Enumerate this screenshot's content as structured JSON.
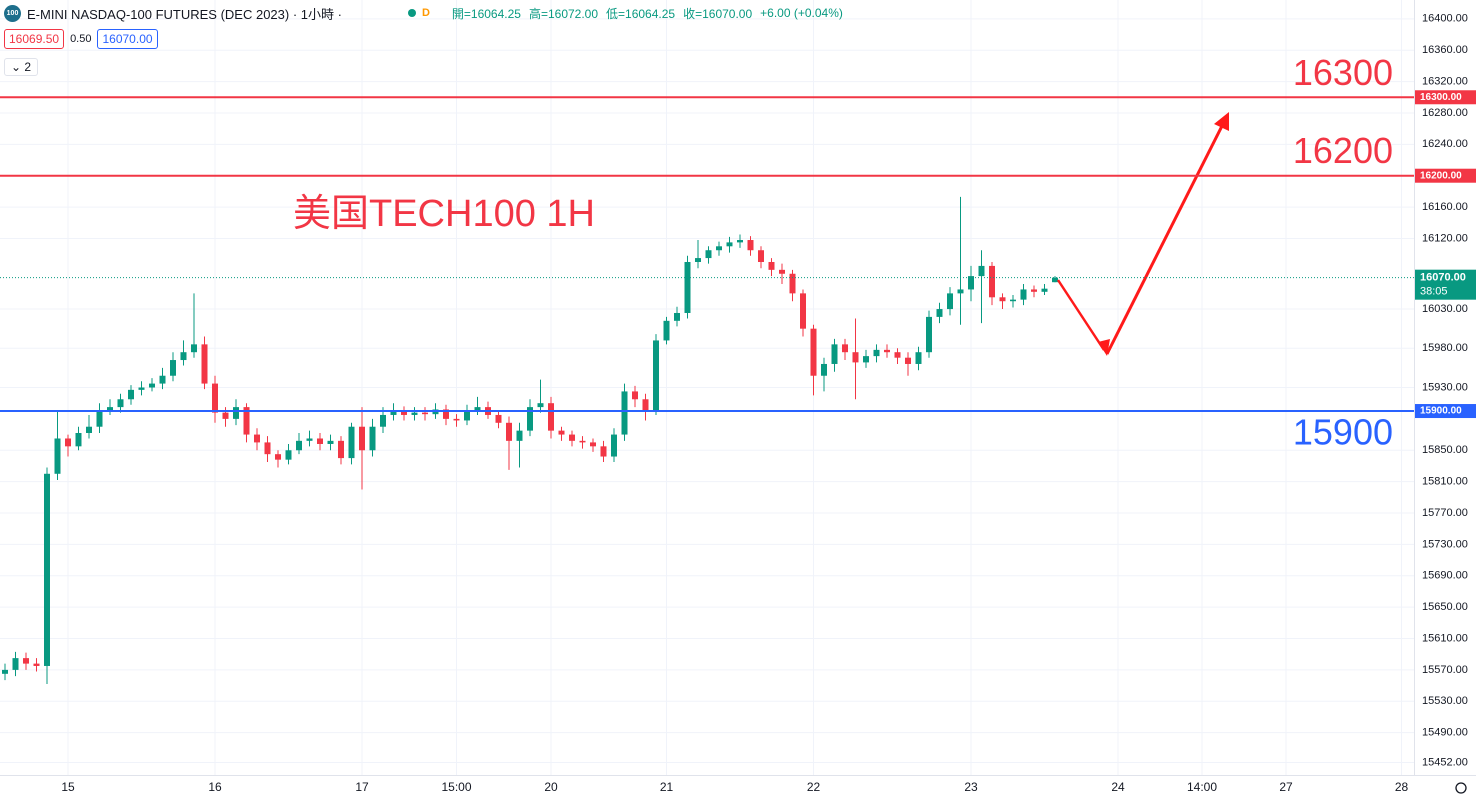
{
  "header": {
    "icon": "100",
    "title": "E-MINI NASDAQ-100 FUTURES (DEC 2023) · 1小時 ·",
    "badge": "D",
    "ohlc": [
      "開=16064.25",
      "高=16072.00",
      "低=16064.25",
      "收=16070.00",
      "+6.00 (+0.04%)"
    ],
    "bid": "16069.50",
    "spread": "0.50",
    "ask": "16070.00",
    "layout_count": "2"
  },
  "chart_data": {
    "type": "candlestick",
    "annotation": "美国TECH100 1H",
    "categories": [
      null,
      null,
      null,
      null,
      null,
      null,
      "15",
      null,
      null,
      null,
      null,
      null,
      null,
      null,
      null,
      null,
      null,
      null,
      null,
      null,
      "16",
      null,
      null,
      null,
      null,
      null,
      null,
      null,
      null,
      null,
      null,
      null,
      null,
      null,
      "17",
      null,
      null,
      null,
      null,
      null,
      null,
      null,
      null,
      "15:00",
      null,
      null,
      null,
      null,
      null,
      null,
      null,
      null,
      "20",
      null,
      null,
      null,
      null,
      null,
      null,
      null,
      null,
      null,
      null,
      "21",
      null,
      null,
      null,
      null,
      null,
      null,
      null,
      null,
      null,
      null,
      null,
      null,
      null,
      "22",
      null,
      null,
      null,
      null,
      null,
      null,
      null,
      null,
      null,
      null,
      null,
      null,
      null,
      null,
      "23",
      null,
      null,
      null,
      null,
      null,
      null,
      null,
      null,
      null,
      null,
      null,
      null,
      null,
      "24",
      null,
      null,
      null,
      null,
      null,
      null,
      null,
      "14:00",
      null,
      null,
      null,
      null,
      null,
      null,
      null,
      "27",
      null,
      null,
      null,
      null,
      null,
      null,
      null,
      null,
      null,
      null,
      "28"
    ],
    "open": [
      15565,
      15570,
      15585,
      15578,
      15575,
      15820,
      15865,
      15855,
      15872,
      15880,
      15900,
      15905,
      15915,
      15927,
      15930,
      15935,
      15945,
      15965,
      15975,
      15985,
      15935,
      15898,
      15890,
      15905,
      15870,
      15860,
      15845,
      15838,
      15850,
      15862,
      15865,
      15858,
      15862,
      15840,
      15880,
      15850,
      15880,
      15895,
      15900,
      15895,
      15898,
      15896,
      15902,
      15890,
      15888,
      15900,
      15905,
      15895,
      15885,
      15862,
      15875,
      15905,
      15910,
      15875,
      15870,
      15862,
      15860,
      15855,
      15842,
      15870,
      15925,
      15915,
      15900,
      15990,
      16015,
      16025,
      16090,
      16095,
      16105,
      16110,
      16115,
      16118,
      16105,
      16090,
      16080,
      16075,
      16050,
      16005,
      15945,
      15960,
      15985,
      15975,
      15962,
      15970,
      15978,
      15975,
      15968,
      15960,
      15975,
      16020,
      16030,
      16050,
      16055,
      16072,
      16085,
      16045,
      16040,
      16042,
      16055,
      16052,
      16064.25,
      null,
      null,
      null,
      null,
      null,
      null,
      null,
      null,
      null,
      null,
      null,
      null,
      null,
      null,
      null,
      null,
      null,
      null,
      null,
      null,
      null,
      null,
      null,
      null,
      null,
      null,
      null,
      null,
      null,
      null,
      null,
      null,
      null
    ],
    "high": [
      15578,
      15593,
      15592,
      15585,
      15828,
      15900,
      15870,
      15880,
      15895,
      15910,
      15915,
      15922,
      15933,
      15938,
      15942,
      15955,
      15975,
      15990,
      16050,
      15995,
      15945,
      15905,
      15915,
      15910,
      15878,
      15868,
      15850,
      15858,
      15872,
      15875,
      15872,
      15870,
      15868,
      15885,
      15905,
      15890,
      15905,
      15910,
      15906,
      15905,
      15905,
      15910,
      15908,
      15896,
      15908,
      15918,
      15912,
      15900,
      15893,
      15885,
      15915,
      15940,
      15918,
      15880,
      15875,
      15868,
      15865,
      15862,
      15878,
      15935,
      15932,
      15922,
      15998,
      16020,
      16033,
      16098,
      16118,
      16110,
      16116,
      16122,
      16125,
      16123,
      16110,
      16095,
      16088,
      16080,
      16055,
      16010,
      15968,
      15992,
      15992,
      16018,
      15978,
      15985,
      15985,
      15980,
      15975,
      15982,
      16028,
      16038,
      16058,
      16173,
      16085,
      16105,
      16090,
      16050,
      16048,
      16062,
      16060,
      16062,
      16072,
      null,
      null,
      null,
      null,
      null,
      null,
      null,
      null,
      null,
      null,
      null,
      null,
      null,
      null,
      null,
      null,
      null,
      null,
      null,
      null,
      null,
      null,
      null,
      null,
      null,
      null,
      null,
      null,
      null,
      null,
      null,
      null,
      null
    ],
    "low": [
      15557,
      15562,
      15570,
      15568,
      15552,
      15812,
      15842,
      15850,
      15865,
      15872,
      15895,
      15898,
      15908,
      15920,
      15925,
      15928,
      15938,
      15958,
      15968,
      15928,
      15885,
      15880,
      15882,
      15860,
      15850,
      15835,
      15828,
      15832,
      15845,
      15855,
      15850,
      15850,
      15832,
      15832,
      15800,
      15842,
      15872,
      15888,
      15888,
      15888,
      15888,
      15890,
      15882,
      15880,
      15882,
      15895,
      15890,
      15878,
      15825,
      15828,
      15868,
      15898,
      15865,
      15862,
      15855,
      15852,
      15848,
      15835,
      15835,
      15862,
      15905,
      15888,
      15895,
      15985,
      16008,
      16018,
      16082,
      16088,
      16098,
      16102,
      16108,
      16098,
      16082,
      16072,
      16062,
      16040,
      15995,
      15920,
      15925,
      15950,
      15965,
      15915,
      15955,
      15962,
      15968,
      15960,
      15945,
      15952,
      15968,
      16012,
      16022,
      16010,
      16040,
      16012,
      16035,
      16030,
      16032,
      16035,
      16045,
      16048,
      16064.25,
      null,
      null,
      null,
      null,
      null,
      null,
      null,
      null,
      null,
      null,
      null,
      null,
      null,
      null,
      null,
      null,
      null,
      null,
      null,
      null,
      null,
      null,
      null,
      null,
      null,
      null,
      null,
      null,
      null,
      null,
      null,
      null,
      null
    ],
    "close": [
      15570,
      15585,
      15578,
      15575,
      15820,
      15865,
      15855,
      15872,
      15880,
      15900,
      15905,
      15915,
      15927,
      15930,
      15935,
      15945,
      15965,
      15975,
      15985,
      15935,
      15898,
      15890,
      15905,
      15870,
      15860,
      15845,
      15838,
      15850,
      15862,
      15865,
      15858,
      15862,
      15840,
      15880,
      15850,
      15880,
      15895,
      15900,
      15895,
      15898,
      15896,
      15902,
      15890,
      15888,
      15900,
      15905,
      15895,
      15885,
      15862,
      15875,
      15905,
      15910,
      15875,
      15870,
      15862,
      15860,
      15855,
      15842,
      15870,
      15925,
      15915,
      15900,
      15990,
      16015,
      16025,
      16090,
      16095,
      16105,
      16110,
      16115,
      16118,
      16105,
      16090,
      16080,
      16075,
      16050,
      16005,
      15945,
      15960,
      15985,
      15975,
      15962,
      15970,
      15978,
      15975,
      15968,
      15960,
      15975,
      16020,
      16030,
      16050,
      16055,
      16072,
      16085,
      16045,
      16040,
      16042,
      16055,
      16052,
      16056,
      16070,
      null,
      null,
      null,
      null,
      null,
      null,
      null,
      null,
      null,
      null,
      null,
      null,
      null,
      null,
      null,
      null,
      null,
      null,
      null,
      null,
      null,
      null,
      null,
      null,
      null,
      null,
      null,
      null,
      null,
      null,
      null,
      null,
      null
    ],
    "up_color": "#089981",
    "down_color": "#f23645",
    "ylim": [
      15436,
      16424
    ],
    "yticks": [
      {
        "value": 16400,
        "label": "16400.00"
      },
      {
        "value": 16360,
        "label": "16360.00"
      },
      {
        "value": 16320,
        "label": "16320.00"
      },
      {
        "value": 16280,
        "label": "16280.00"
      },
      {
        "value": 16240,
        "label": "16240.00"
      },
      {
        "value": 16160,
        "label": "16160.00"
      },
      {
        "value": 16120,
        "label": "16120.00"
      },
      {
        "value": 16030,
        "label": "16030.00"
      },
      {
        "value": 15980,
        "label": "15980.00"
      },
      {
        "value": 15930,
        "label": "15930.00"
      },
      {
        "value": 15850,
        "label": "15850.00"
      },
      {
        "value": 15810,
        "label": "15810.00"
      },
      {
        "value": 15770,
        "label": "15770.00"
      },
      {
        "value": 15730,
        "label": "15730.00"
      },
      {
        "value": 15690,
        "label": "15690.00"
      },
      {
        "value": 15650,
        "label": "15650.00"
      },
      {
        "value": 15610,
        "label": "15610.00"
      },
      {
        "value": 15570,
        "label": "15570.00"
      },
      {
        "value": 15530,
        "label": "15530.00"
      },
      {
        "value": 15490,
        "label": "15490.00"
      },
      {
        "value": 15452,
        "label": "15452.00"
      }
    ],
    "grid": true,
    "levels": [
      {
        "value": 16300,
        "label": "16300.00",
        "text": "16300",
        "color": "#f23645"
      },
      {
        "value": 16200,
        "label": "16200.00",
        "text": "16200",
        "color": "#f23645"
      },
      {
        "value": 15900,
        "label": "15900.00",
        "text": "15900",
        "color": "#2962ff"
      }
    ],
    "last_price": {
      "value": 16070,
      "label": "16070.00",
      "countdown": "38:05",
      "color": "#089981"
    }
  }
}
